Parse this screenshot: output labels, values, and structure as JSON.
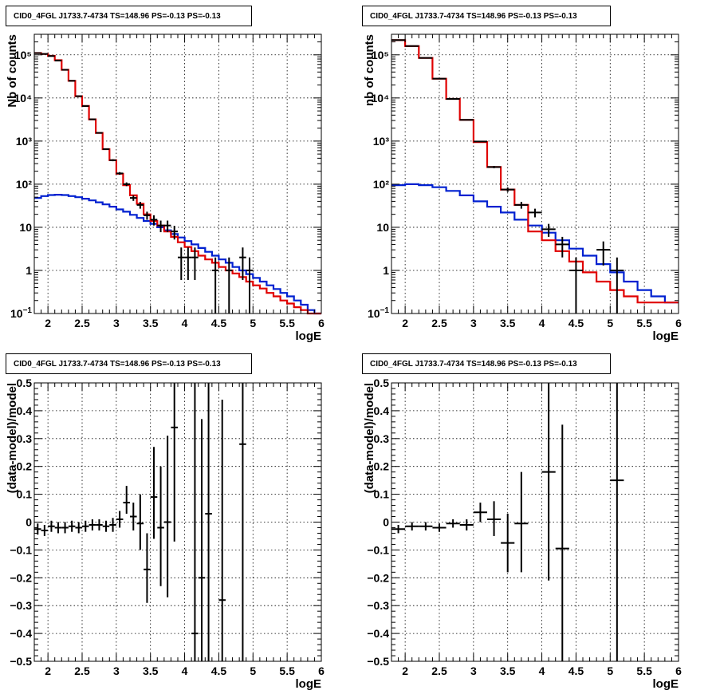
{
  "colors": {
    "data": "#000000",
    "model_total": "#e00000",
    "model_bkg": "#0020d0"
  },
  "chart_data": [
    {
      "type": "histogram-log",
      "title": "CID0_4FGL J1733.7-4734 TS=148.96 PS=-0.13 PS=-0.13",
      "xlabel": "logE",
      "ylabel": "Nb of counts",
      "xlim": [
        1.8,
        6
      ],
      "ylim": [
        0.1,
        300000
      ],
      "log_y": true,
      "grid": true,
      "x_ticks": [
        2,
        2.5,
        3,
        3.5,
        4,
        4.5,
        5,
        5.5,
        6
      ],
      "x_tick_labels": [
        "2",
        "2.5",
        "3",
        "3.5",
        "4",
        "4.5",
        "5",
        "5.5",
        "6"
      ],
      "y_ticks": [
        0.1,
        1,
        10,
        100,
        1000,
        10000,
        100000
      ],
      "y_tick_labels": [
        "10−1",
        "1",
        "10",
        "10²",
        "10³",
        "10⁴",
        "10⁵"
      ],
      "bin_edges_lo": 1.8,
      "bin_width": 0.1,
      "series": [
        {
          "values": [
            110000,
            105000,
            95000,
            75000,
            45000,
            25000,
            11000,
            6500,
            3200,
            1550,
            650,
            360,
            175,
            95,
            55,
            35,
            20,
            14,
            11,
            8,
            6,
            4.5,
            3.5,
            2.8,
            2.2,
            1.8,
            1.5,
            1.2,
            1.0,
            0.85,
            0.7,
            0.55,
            0.45,
            0.38,
            0.3,
            0.25,
            0.2,
            0.17,
            0.14,
            0.12,
            0.1,
            0.1
          ]
        },
        {
          "values": [
            48,
            53,
            56,
            57,
            56,
            53,
            50,
            46,
            42,
            38,
            34,
            30,
            26,
            23,
            19.5,
            16.5,
            14,
            12,
            10,
            8.5,
            7,
            5.8,
            4.8,
            4.0,
            3.3,
            2.7,
            2.2,
            1.8,
            1.5,
            1.2,
            1.0,
            0.82,
            0.67,
            0.55,
            0.45,
            0.37,
            0.3,
            0.25,
            0.2,
            0.16,
            0.12,
            0.1
          ]
        }
      ],
      "points": [
        {
          "x": 1.85,
          "y": 110000,
          "ylo": 108000,
          "yhi": 112000
        },
        {
          "x": 1.95,
          "y": 105000,
          "ylo": 103000,
          "yhi": 107000
        },
        {
          "x": 2.05,
          "y": 94000,
          "ylo": 92000,
          "yhi": 96000
        },
        {
          "x": 2.15,
          "y": 74000,
          "ylo": 72000,
          "yhi": 76000
        },
        {
          "x": 2.25,
          "y": 45000,
          "ylo": 44000,
          "yhi": 46000
        },
        {
          "x": 2.35,
          "y": 25000,
          "ylo": 24500,
          "yhi": 25500
        },
        {
          "x": 2.45,
          "y": 11000,
          "ylo": 10700,
          "yhi": 11300
        },
        {
          "x": 2.55,
          "y": 6500,
          "ylo": 6300,
          "yhi": 6700
        },
        {
          "x": 2.65,
          "y": 3200,
          "ylo": 3100,
          "yhi": 3300
        },
        {
          "x": 2.75,
          "y": 1550,
          "ylo": 1500,
          "yhi": 1600
        },
        {
          "x": 2.85,
          "y": 650,
          "ylo": 625,
          "yhi": 675
        },
        {
          "x": 2.95,
          "y": 360,
          "ylo": 341,
          "yhi": 379
        },
        {
          "x": 3.05,
          "y": 178,
          "ylo": 165,
          "yhi": 191
        },
        {
          "x": 3.15,
          "y": 100,
          "ylo": 90,
          "yhi": 110
        },
        {
          "x": 3.25,
          "y": 48,
          "ylo": 41,
          "yhi": 55
        },
        {
          "x": 3.35,
          "y": 33,
          "ylo": 27,
          "yhi": 39
        },
        {
          "x": 3.45,
          "y": 19,
          "ylo": 15,
          "yhi": 23
        },
        {
          "x": 3.55,
          "y": 15,
          "ylo": 11,
          "yhi": 19
        },
        {
          "x": 3.65,
          "y": 11,
          "ylo": 7.7,
          "yhi": 14.3
        },
        {
          "x": 3.75,
          "y": 11,
          "ylo": 7.7,
          "yhi": 14.3
        },
        {
          "x": 3.85,
          "y": 8,
          "ylo": 5.2,
          "yhi": 10.8
        },
        {
          "x": 3.95,
          "y": 2,
          "ylo": 0.6,
          "yhi": 3.4
        },
        {
          "x": 4.05,
          "y": 2,
          "ylo": 0.6,
          "yhi": 3.4
        },
        {
          "x": 4.15,
          "y": 2,
          "ylo": 0.6,
          "yhi": 3.4
        },
        {
          "x": 4.45,
          "y": 1,
          "ylo": 0.1,
          "yhi": 2
        },
        {
          "x": 4.65,
          "y": 1,
          "ylo": 0.1,
          "yhi": 2
        },
        {
          "x": 4.85,
          "y": 2,
          "ylo": 0.6,
          "yhi": 3.4
        },
        {
          "x": 4.95,
          "y": 1,
          "ylo": 0.1,
          "yhi": 2
        }
      ]
    },
    {
      "type": "histogram-log",
      "title": "CID0_4FGL J1733.7-4734 TS=148.96 PS=-0.13 PS=-0.13",
      "xlabel": "logE",
      "ylabel": "nb of counts",
      "xlim": [
        1.8,
        6
      ],
      "ylim": [
        0.1,
        300000
      ],
      "log_y": true,
      "grid": true,
      "x_ticks": [
        2,
        2.5,
        3,
        3.5,
        4,
        4.5,
        5,
        5.5,
        6
      ],
      "x_tick_labels": [
        "2",
        "2.5",
        "3",
        "3.5",
        "4",
        "4.5",
        "5",
        "5.5",
        "6"
      ],
      "y_ticks": [
        0.1,
        1,
        10,
        100,
        1000,
        10000,
        100000
      ],
      "y_tick_labels": [
        "10−1",
        "1",
        "10",
        "10²",
        "10³",
        "10⁴",
        "10⁵"
      ],
      "bin_edges_lo": 1.8,
      "bin_width": 0.2,
      "series": [
        {
          "values": [
            220000,
            160000,
            85000,
            28000,
            9500,
            3100,
            950,
            250,
            75,
            33,
            8,
            5,
            2.8,
            1.6,
            0.9,
            0.55,
            0.35,
            0.25,
            0.18,
            0.18,
            0.18
          ]
        },
        {
          "values": [
            95,
            100,
            95,
            85,
            70,
            55,
            40,
            30,
            22,
            15,
            11,
            7.5,
            5,
            3.2,
            2.2,
            1.4,
            0.9,
            0.55,
            0.35,
            0.25,
            0.18
          ]
        }
      ],
      "points": [
        {
          "x": 1.9,
          "y": 220000,
          "ylo": 218000,
          "yhi": 222000
        },
        {
          "x": 2.1,
          "y": 160000,
          "ylo": 158000,
          "yhi": 162000
        },
        {
          "x": 2.3,
          "y": 85000,
          "ylo": 84000,
          "yhi": 86000
        },
        {
          "x": 2.5,
          "y": 28000,
          "ylo": 27800,
          "yhi": 28200
        },
        {
          "x": 2.7,
          "y": 9500,
          "ylo": 9400,
          "yhi": 9600
        },
        {
          "x": 2.9,
          "y": 3100,
          "ylo": 3050,
          "yhi": 3150
        },
        {
          "x": 3.1,
          "y": 980,
          "ylo": 950,
          "yhi": 1010
        },
        {
          "x": 3.3,
          "y": 250,
          "ylo": 235,
          "yhi": 265
        },
        {
          "x": 3.5,
          "y": 75,
          "ylo": 66,
          "yhi": 84
        },
        {
          "x": 3.7,
          "y": 33,
          "ylo": 27,
          "yhi": 39
        },
        {
          "x": 3.9,
          "y": 22,
          "ylo": 17,
          "yhi": 27
        },
        {
          "x": 4.1,
          "y": 9,
          "ylo": 6,
          "yhi": 12
        },
        {
          "x": 4.3,
          "y": 4,
          "ylo": 2,
          "yhi": 6
        },
        {
          "x": 4.5,
          "y": 1,
          "ylo": 0.1,
          "yhi": 2
        },
        {
          "x": 4.9,
          "y": 3,
          "ylo": 1.3,
          "yhi": 4.7
        },
        {
          "x": 5.1,
          "y": 1,
          "ylo": 0.1,
          "yhi": 2
        }
      ]
    },
    {
      "type": "scatter-errorbars",
      "title": "CID0_4FGL J1733.7-4734 TS=148.96 PS=-0.13 PS=-0.13",
      "xlabel": "logE",
      "ylabel": "(data-model)/model",
      "xlim": [
        1.8,
        6
      ],
      "ylim": [
        -0.5,
        0.5
      ],
      "grid": true,
      "x_ticks": [
        2,
        2.5,
        3,
        3.5,
        4,
        4.5,
        5,
        5.5,
        6
      ],
      "x_tick_labels": [
        "2",
        "2.5",
        "3",
        "3.5",
        "4",
        "4.5",
        "5",
        "5.5",
        "6"
      ],
      "y_ticks": [
        -0.5,
        -0.4,
        -0.3,
        -0.2,
        -0.1,
        0,
        0.1,
        0.2,
        0.3,
        0.4,
        0.5
      ],
      "y_tick_labels": [
        "−0.5",
        "−0.4",
        "−0.3",
        "−0.2",
        "−0.1",
        "0",
        "0.1",
        "0.2",
        "0.3",
        "0.4",
        "0.5"
      ],
      "xerr": 0.05,
      "points": [
        {
          "x": 1.85,
          "y": -0.025,
          "ylo": -0.045,
          "yhi": -0.005
        },
        {
          "x": 1.95,
          "y": -0.03,
          "ylo": -0.05,
          "yhi": -0.01
        },
        {
          "x": 2.05,
          "y": -0.015,
          "ylo": -0.035,
          "yhi": 0.005
        },
        {
          "x": 2.15,
          "y": -0.02,
          "ylo": -0.04,
          "yhi": 0.0
        },
        {
          "x": 2.25,
          "y": -0.02,
          "ylo": -0.04,
          "yhi": 0.0
        },
        {
          "x": 2.35,
          "y": -0.015,
          "ylo": -0.035,
          "yhi": 0.005
        },
        {
          "x": 2.45,
          "y": -0.02,
          "ylo": -0.04,
          "yhi": 0.0
        },
        {
          "x": 2.55,
          "y": -0.015,
          "ylo": -0.035,
          "yhi": 0.005
        },
        {
          "x": 2.65,
          "y": -0.01,
          "ylo": -0.03,
          "yhi": 0.01
        },
        {
          "x": 2.75,
          "y": -0.01,
          "ylo": -0.03,
          "yhi": 0.01
        },
        {
          "x": 2.85,
          "y": -0.015,
          "ylo": -0.035,
          "yhi": 0.005
        },
        {
          "x": 2.95,
          "y": -0.01,
          "ylo": -0.035,
          "yhi": 0.015
        },
        {
          "x": 3.05,
          "y": 0.01,
          "ylo": -0.02,
          "yhi": 0.04
        },
        {
          "x": 3.15,
          "y": 0.07,
          "ylo": 0.03,
          "yhi": 0.13
        },
        {
          "x": 3.25,
          "y": 0.02,
          "ylo": -0.03,
          "yhi": 0.07
        },
        {
          "x": 3.35,
          "y": -0.005,
          "ylo": -0.1,
          "yhi": 0.1
        },
        {
          "x": 3.45,
          "y": -0.17,
          "ylo": -0.29,
          "yhi": -0.04
        },
        {
          "x": 3.55,
          "y": 0.09,
          "ylo": -0.06,
          "yhi": 0.27
        },
        {
          "x": 3.65,
          "y": -0.02,
          "ylo": -0.23,
          "yhi": 0.2
        },
        {
          "x": 3.75,
          "y": 0.0,
          "ylo": -0.27,
          "yhi": 0.31
        },
        {
          "x": 3.85,
          "y": 0.34,
          "ylo": -0.07,
          "yhi": 0.5
        },
        {
          "x": 4.15,
          "y": -0.4,
          "ylo": -0.5,
          "yhi": 0.5
        },
        {
          "x": 4.25,
          "y": -0.2,
          "ylo": -0.5,
          "yhi": 0.37
        },
        {
          "x": 4.35,
          "y": 0.03,
          "ylo": -0.5,
          "yhi": 0.5
        },
        {
          "x": 4.55,
          "y": -0.28,
          "ylo": -0.5,
          "yhi": 0.44
        },
        {
          "x": 4.85,
          "y": 0.28,
          "ylo": -0.5,
          "yhi": 0.5
        }
      ]
    },
    {
      "type": "scatter-errorbars",
      "title": "CID0_4FGL J1733.7-4734 TS=148.96 PS=-0.13 PS=-0.13",
      "xlabel": "logE",
      "ylabel": "(data-model)/model",
      "xlim": [
        1.8,
        6
      ],
      "ylim": [
        -0.5,
        0.5
      ],
      "grid": true,
      "x_ticks": [
        2,
        2.5,
        3,
        3.5,
        4,
        4.5,
        5,
        5.5,
        6
      ],
      "x_tick_labels": [
        "2",
        "2.5",
        "3",
        "3.5",
        "4",
        "4.5",
        "5",
        "5.5",
        "6"
      ],
      "y_ticks": [
        -0.5,
        -0.4,
        -0.3,
        -0.2,
        -0.1,
        0,
        0.1,
        0.2,
        0.3,
        0.4,
        0.5
      ],
      "y_tick_labels": [
        "−0.5",
        "−0.4",
        "−0.3",
        "−0.2",
        "−0.1",
        "0",
        "0.1",
        "0.2",
        "0.3",
        "0.4",
        "0.5"
      ],
      "xerr": 0.1,
      "points": [
        {
          "x": 1.9,
          "y": -0.025,
          "ylo": -0.04,
          "yhi": -0.01
        },
        {
          "x": 2.1,
          "y": -0.015,
          "ylo": -0.03,
          "yhi": 0.0
        },
        {
          "x": 2.3,
          "y": -0.015,
          "ylo": -0.03,
          "yhi": 0.0
        },
        {
          "x": 2.5,
          "y": -0.02,
          "ylo": -0.035,
          "yhi": -0.005
        },
        {
          "x": 2.7,
          "y": -0.005,
          "ylo": -0.02,
          "yhi": 0.01
        },
        {
          "x": 2.9,
          "y": -0.01,
          "ylo": -0.03,
          "yhi": 0.01
        },
        {
          "x": 3.1,
          "y": 0.035,
          "ylo": 0.0,
          "yhi": 0.07
        },
        {
          "x": 3.3,
          "y": 0.01,
          "ylo": -0.05,
          "yhi": 0.075
        },
        {
          "x": 3.5,
          "y": -0.075,
          "ylo": -0.18,
          "yhi": 0.03
        },
        {
          "x": 3.7,
          "y": -0.005,
          "ylo": -0.18,
          "yhi": 0.18
        },
        {
          "x": 4.1,
          "y": 0.18,
          "ylo": -0.21,
          "yhi": 0.5
        },
        {
          "x": 4.3,
          "y": -0.095,
          "ylo": -0.5,
          "yhi": 0.35
        },
        {
          "x": 5.1,
          "y": 0.15,
          "ylo": -0.5,
          "yhi": 0.5
        }
      ]
    }
  ]
}
